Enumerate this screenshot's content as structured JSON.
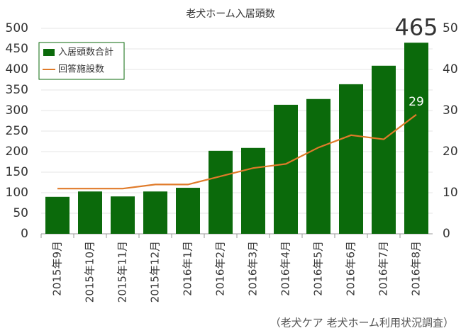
{
  "chart_data": {
    "type": "bar",
    "title": "老犬ホーム入居頭数",
    "categories": [
      "2015年9月",
      "2015年10月",
      "2015年11月",
      "2015年12月",
      "2016年1月",
      "2016年2月",
      "2016年3月",
      "2016年4月",
      "2016年5月",
      "2016年6月",
      "2016年7月",
      "2016年8月"
    ],
    "series": [
      {
        "name": "入居頭数合計",
        "type": "bar",
        "color": "#0b6a0b",
        "values": [
          90,
          103,
          91,
          103,
          112,
          202,
          209,
          314,
          328,
          364,
          409,
          465
        ]
      },
      {
        "name": "回答施設数",
        "type": "line",
        "axis": "y2",
        "color": "#e07b2a",
        "values": [
          11,
          11,
          11,
          12,
          12,
          14,
          16,
          17,
          21,
          24,
          23,
          29
        ]
      }
    ],
    "ylim": [
      0,
      500
    ],
    "yticks": [
      0,
      50,
      100,
      150,
      200,
      250,
      300,
      350,
      400,
      450,
      500
    ],
    "y2lim": [
      0,
      50
    ],
    "y2ticks": [
      0,
      10,
      20,
      30,
      40,
      50
    ],
    "grid": true,
    "legend": "top-left",
    "source": "（老犬ケア 老犬ホーム利用状況調査）"
  }
}
